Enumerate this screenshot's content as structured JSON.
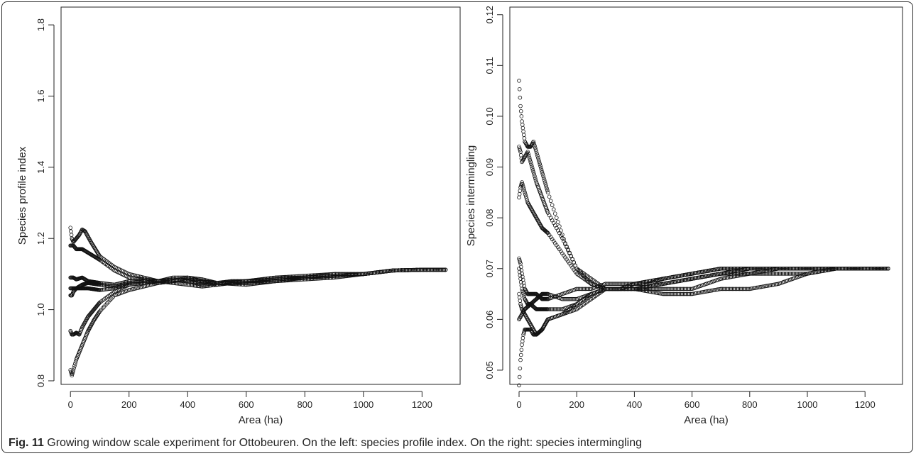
{
  "caption": {
    "label": "Fig. 11",
    "text": "Growing window scale experiment for Ottobeuren. On the left: species profile index. On the right: species intermingling"
  },
  "chart_data": [
    {
      "type": "scatter",
      "title": "",
      "xlabel": "Area (ha)",
      "ylabel": "Species profile index",
      "xlim": [
        -32,
        1330
      ],
      "ylim": [
        0.79,
        1.85
      ],
      "xticks": [
        0,
        200,
        400,
        600,
        800,
        1000,
        1200
      ],
      "yticks": [
        0.8,
        1.0,
        1.2,
        1.4,
        1.6,
        1.8
      ],
      "marker": "open-circle",
      "grid": false,
      "series": [
        {
          "x": [
            0,
            5,
            10,
            20,
            30,
            40,
            50,
            70,
            100,
            150,
            200,
            250,
            300,
            350,
            400,
            450,
            500,
            550,
            600,
            650,
            700,
            800,
            900,
            1000,
            1100,
            1200,
            1280
          ],
          "y": [
            1.23,
            1.2,
            1.19,
            1.2,
            1.21,
            1.225,
            1.22,
            1.19,
            1.15,
            1.12,
            1.1,
            1.09,
            1.08,
            1.08,
            1.09,
            1.085,
            1.075,
            1.08,
            1.08,
            1.085,
            1.09,
            1.095,
            1.1,
            1.1,
            1.11,
            1.112,
            1.112
          ]
        },
        {
          "x": [
            0,
            10,
            20,
            40,
            60,
            100,
            150,
            200,
            250,
            300,
            350,
            400,
            450,
            500,
            550,
            600,
            650,
            700,
            800,
            900,
            1000,
            1100,
            1200,
            1280
          ],
          "y": [
            1.18,
            1.18,
            1.17,
            1.17,
            1.16,
            1.14,
            1.11,
            1.09,
            1.085,
            1.08,
            1.09,
            1.09,
            1.08,
            1.07,
            1.075,
            1.08,
            1.08,
            1.085,
            1.09,
            1.1,
            1.1,
            1.11,
            1.112,
            1.112
          ]
        },
        {
          "x": [
            0,
            10,
            20,
            40,
            60,
            100,
            150,
            200,
            250,
            300,
            350,
            400,
            450,
            500,
            600,
            700,
            800,
            900,
            1000,
            1100,
            1200,
            1280
          ],
          "y": [
            1.09,
            1.09,
            1.085,
            1.09,
            1.08,
            1.075,
            1.07,
            1.08,
            1.08,
            1.075,
            1.08,
            1.085,
            1.08,
            1.075,
            1.07,
            1.08,
            1.09,
            1.095,
            1.1,
            1.11,
            1.112,
            1.112
          ]
        },
        {
          "x": [
            0,
            10,
            20,
            40,
            60,
            100,
            150,
            200,
            250,
            300,
            350,
            400,
            450,
            500,
            600,
            700,
            800,
            900,
            1000,
            1100,
            1200,
            1280
          ],
          "y": [
            1.06,
            1.06,
            1.06,
            1.07,
            1.075,
            1.07,
            1.065,
            1.075,
            1.08,
            1.08,
            1.075,
            1.07,
            1.065,
            1.07,
            1.08,
            1.085,
            1.09,
            1.095,
            1.1,
            1.11,
            1.112,
            1.112
          ]
        },
        {
          "x": [
            0,
            5,
            10,
            20,
            40,
            60,
            100,
            150,
            200,
            250,
            300,
            350,
            400,
            450,
            500,
            600,
            700,
            800,
            900,
            1000,
            1100,
            1200,
            1280
          ],
          "y": [
            1.04,
            1.04,
            1.05,
            1.06,
            1.06,
            1.06,
            1.055,
            1.06,
            1.07,
            1.075,
            1.08,
            1.085,
            1.08,
            1.07,
            1.075,
            1.08,
            1.09,
            1.09,
            1.095,
            1.1,
            1.11,
            1.112,
            1.112
          ]
        },
        {
          "x": [
            0,
            5,
            10,
            20,
            30,
            40,
            60,
            80,
            100,
            150,
            200,
            250,
            300,
            350,
            400,
            500,
            600,
            700,
            800,
            900,
            1000,
            1100,
            1200,
            1280
          ],
          "y": [
            0.94,
            0.93,
            0.93,
            0.935,
            0.93,
            0.95,
            0.98,
            1.0,
            1.02,
            1.05,
            1.07,
            1.075,
            1.08,
            1.085,
            1.08,
            1.075,
            1.075,
            1.08,
            1.09,
            1.095,
            1.1,
            1.11,
            1.112,
            1.112
          ]
        },
        {
          "x": [
            0,
            5,
            10,
            20,
            30,
            40,
            50,
            60,
            80,
            100,
            150,
            200,
            250,
            300,
            350,
            400,
            500,
            600,
            700,
            800,
            900,
            1000,
            1100,
            1200,
            1280
          ],
          "y": [
            0.83,
            0.815,
            0.83,
            0.86,
            0.88,
            0.9,
            0.92,
            0.94,
            0.97,
            0.995,
            1.04,
            1.055,
            1.065,
            1.075,
            1.08,
            1.085,
            1.075,
            1.075,
            1.08,
            1.085,
            1.09,
            1.1,
            1.11,
            1.112,
            1.112
          ]
        }
      ]
    },
    {
      "type": "scatter",
      "title": "",
      "xlabel": "Area (ha)",
      "ylabel": "Species intermingling",
      "xlim": [
        -32,
        1330
      ],
      "ylim": [
        0.0472,
        0.1215
      ],
      "xticks": [
        0,
        200,
        400,
        600,
        800,
        1000,
        1200
      ],
      "yticks": [
        0.05,
        0.06,
        0.07,
        0.08,
        0.09,
        0.1,
        0.11,
        0.12
      ],
      "marker": "open-circle",
      "grid": false,
      "series": [
        {
          "x": [
            0,
            5,
            10,
            15,
            20,
            30,
            40,
            50,
            60,
            80,
            100,
            130,
            160,
            200,
            250,
            300,
            350,
            400,
            450,
            500,
            600,
            700,
            800,
            900,
            1000,
            1100,
            1200,
            1280
          ],
          "y": [
            0.107,
            0.102,
            0.099,
            0.097,
            0.095,
            0.094,
            0.094,
            0.095,
            0.093,
            0.089,
            0.085,
            0.08,
            0.075,
            0.07,
            0.067,
            0.066,
            0.066,
            0.067,
            0.067,
            0.068,
            0.069,
            0.07,
            0.07,
            0.07,
            0.07,
            0.07,
            0.07,
            0.07
          ]
        },
        {
          "x": [
            0,
            5,
            10,
            20,
            30,
            40,
            60,
            80,
            100,
            150,
            200,
            250,
            300,
            350,
            400,
            500,
            600,
            700,
            800,
            900,
            1000,
            1100,
            1200,
            1280
          ],
          "y": [
            0.094,
            0.093,
            0.091,
            0.092,
            0.093,
            0.091,
            0.087,
            0.084,
            0.081,
            0.076,
            0.07,
            0.068,
            0.066,
            0.066,
            0.067,
            0.068,
            0.069,
            0.07,
            0.07,
            0.07,
            0.07,
            0.07,
            0.07,
            0.07
          ]
        },
        {
          "x": [
            0,
            5,
            10,
            20,
            30,
            40,
            60,
            80,
            100,
            150,
            200,
            250,
            300,
            350,
            400,
            500,
            600,
            700,
            800,
            900,
            1000,
            1100,
            1200,
            1280
          ],
          "y": [
            0.084,
            0.086,
            0.087,
            0.085,
            0.083,
            0.082,
            0.08,
            0.078,
            0.077,
            0.073,
            0.069,
            0.067,
            0.066,
            0.066,
            0.066,
            0.065,
            0.065,
            0.066,
            0.066,
            0.067,
            0.069,
            0.07,
            0.07,
            0.07
          ]
        },
        {
          "x": [
            0,
            5,
            10,
            20,
            30,
            40,
            60,
            80,
            100,
            150,
            200,
            250,
            300,
            350,
            400,
            500,
            600,
            700,
            800,
            900,
            1000,
            1100,
            1200,
            1280
          ],
          "y": [
            0.072,
            0.071,
            0.069,
            0.066,
            0.065,
            0.065,
            0.065,
            0.064,
            0.064,
            0.065,
            0.066,
            0.066,
            0.067,
            0.067,
            0.067,
            0.068,
            0.069,
            0.07,
            0.07,
            0.07,
            0.07,
            0.07,
            0.07,
            0.07
          ]
        },
        {
          "x": [
            0,
            5,
            10,
            20,
            30,
            40,
            60,
            80,
            100,
            150,
            200,
            250,
            300,
            350,
            400,
            500,
            600,
            700,
            800,
            900,
            1000,
            1100,
            1200,
            1280
          ],
          "y": [
            0.07,
            0.068,
            0.066,
            0.064,
            0.063,
            0.063,
            0.062,
            0.062,
            0.062,
            0.062,
            0.063,
            0.065,
            0.066,
            0.066,
            0.066,
            0.067,
            0.068,
            0.069,
            0.069,
            0.069,
            0.069,
            0.07,
            0.07,
            0.07
          ]
        },
        {
          "x": [
            0,
            5,
            10,
            20,
            30,
            40,
            50,
            60,
            80,
            100,
            150,
            200,
            250,
            300,
            350,
            400,
            500,
            600,
            700,
            800,
            900,
            1000,
            1100,
            1200,
            1280
          ],
          "y": [
            0.065,
            0.063,
            0.062,
            0.061,
            0.06,
            0.059,
            0.058,
            0.057,
            0.058,
            0.06,
            0.061,
            0.063,
            0.065,
            0.066,
            0.066,
            0.066,
            0.067,
            0.068,
            0.069,
            0.07,
            0.07,
            0.07,
            0.07,
            0.07,
            0.07
          ]
        },
        {
          "x": [
            0,
            5,
            10,
            15,
            20,
            30,
            40,
            50,
            60,
            80,
            100,
            150,
            200,
            250,
            300,
            350,
            400,
            500,
            600,
            700,
            800,
            900,
            1000,
            1100,
            1200,
            1280
          ],
          "y": [
            0.047,
            0.052,
            0.055,
            0.057,
            0.058,
            0.058,
            0.058,
            0.057,
            0.057,
            0.058,
            0.06,
            0.061,
            0.062,
            0.064,
            0.066,
            0.066,
            0.066,
            0.067,
            0.068,
            0.069,
            0.07,
            0.07,
            0.07,
            0.07,
            0.07,
            0.07
          ]
        },
        {
          "x": [
            0,
            10,
            20,
            40,
            60,
            80,
            100,
            150,
            200,
            250,
            300,
            350,
            400,
            500,
            600,
            700,
            800,
            900,
            1000,
            1100,
            1200,
            1280
          ],
          "y": [
            0.06,
            0.061,
            0.062,
            0.063,
            0.064,
            0.065,
            0.065,
            0.064,
            0.064,
            0.065,
            0.066,
            0.066,
            0.066,
            0.066,
            0.066,
            0.068,
            0.069,
            0.07,
            0.07,
            0.07,
            0.07,
            0.07
          ]
        }
      ]
    }
  ]
}
